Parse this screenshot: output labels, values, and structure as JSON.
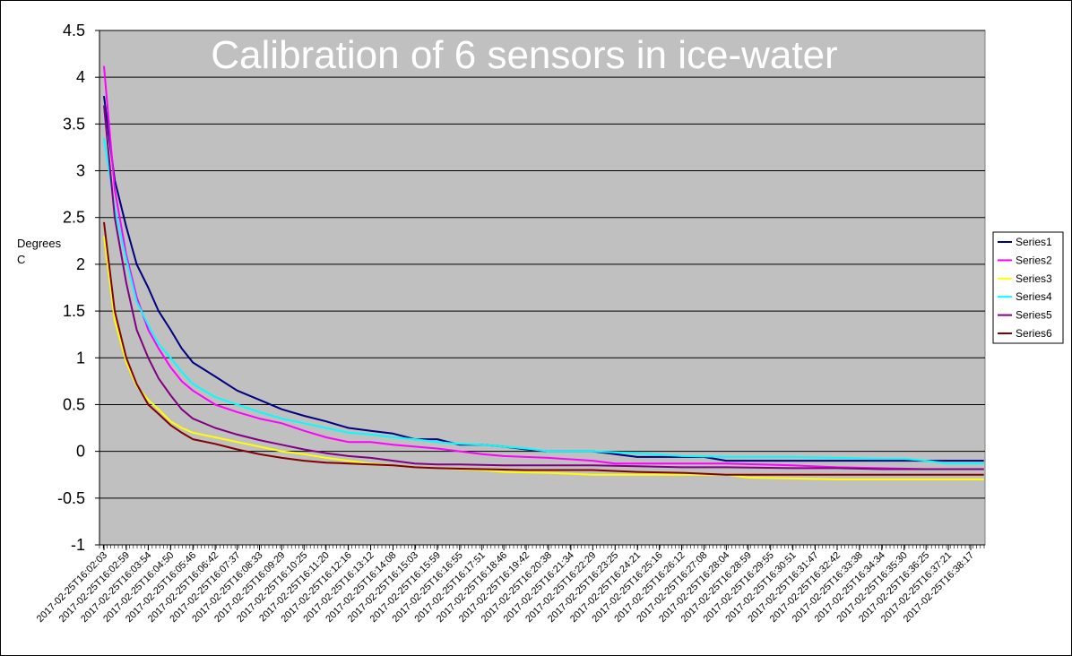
{
  "chart_data": {
    "type": "line",
    "title": "Calibration of 6 sensors in ice-water",
    "ylabel_lines": [
      "Degrees",
      "C"
    ],
    "xlabel": "",
    "ylim": [
      -1,
      4.5
    ],
    "yticks": [
      -1,
      -0.5,
      0,
      0.5,
      1,
      1.5,
      2,
      2.5,
      3,
      3.5,
      4,
      4.5
    ],
    "grid": true,
    "legend_position": "right",
    "plot_background": "#c0c0c0",
    "x_tick_labels": [
      "2017-02-25T16:02:03",
      "2017-02-25T16:02:59",
      "2017-02-25T16:03:54",
      "2017-02-25T16:04:50",
      "2017-02-25T16:05:46",
      "2017-02-25T16:06:42",
      "2017-02-25T16:07:37",
      "2017-02-25T16:08:33",
      "2017-02-25T16:09:29",
      "2017-02-25T16:10:25",
      "2017-02-25T16:11:20",
      "2017-02-25T16:12:16",
      "2017-02-25T16:13:12",
      "2017-02-25T16:14:08",
      "2017-02-25T16:15:03",
      "2017-02-25T16:15:59",
      "2017-02-25T16:16:55",
      "2017-02-25T16:17:51",
      "2017-02-25T16:18:46",
      "2017-02-25T16:19:42",
      "2017-02-25T16:20:38",
      "2017-02-25T16:21:34",
      "2017-02-25T16:22:29",
      "2017-02-25T16:23:25",
      "2017-02-25T16:24:21",
      "2017-02-25T16:25:16",
      "2017-02-25T16:26:12",
      "2017-02-25T16:27:08",
      "2017-02-25T16:28:04",
      "2017-02-25T16:28:59",
      "2017-02-25T16:29:55",
      "2017-02-25T16:30:51",
      "2017-02-25T16:31:47",
      "2017-02-25T16:32:42",
      "2017-02-25T16:33:38",
      "2017-02-25T16:34:34",
      "2017-02-25T16:35:30",
      "2017-02-25T16:36:25",
      "2017-02-25T16:37:21",
      "2017-02-25T16:38:17"
    ],
    "series": [
      {
        "name": "Series1",
        "color": "#000080",
        "points": [
          [
            "2017-02-25T16:02:03",
            3.8
          ],
          [
            "2017-02-25T16:02:30",
            2.9
          ],
          [
            "2017-02-25T16:02:59",
            2.4
          ],
          [
            "2017-02-25T16:03:25",
            2.0
          ],
          [
            "2017-02-25T16:03:54",
            1.75
          ],
          [
            "2017-02-25T16:04:20",
            1.5
          ],
          [
            "2017-02-25T16:04:50",
            1.3
          ],
          [
            "2017-02-25T16:05:18",
            1.1
          ],
          [
            "2017-02-25T16:05:46",
            0.95
          ],
          [
            "2017-02-25T16:06:42",
            0.8
          ],
          [
            "2017-02-25T16:07:37",
            0.65
          ],
          [
            "2017-02-25T16:08:33",
            0.55
          ],
          [
            "2017-02-25T16:09:29",
            0.45
          ],
          [
            "2017-02-25T16:10:25",
            0.38
          ],
          [
            "2017-02-25T16:11:20",
            0.32
          ],
          [
            "2017-02-25T16:12:16",
            0.25
          ],
          [
            "2017-02-25T16:13:12",
            0.22
          ],
          [
            "2017-02-25T16:14:08",
            0.19
          ],
          [
            "2017-02-25T16:15:03",
            0.13
          ],
          [
            "2017-02-25T16:15:59",
            0.13
          ],
          [
            "2017-02-25T16:16:55",
            0.07
          ],
          [
            "2017-02-25T16:17:51",
            0.07
          ],
          [
            "2017-02-25T16:18:46",
            0.05
          ],
          [
            "2017-02-25T16:19:42",
            0.02
          ],
          [
            "2017-02-25T16:20:38",
            0.0
          ],
          [
            "2017-02-25T16:22:29",
            0.0
          ],
          [
            "2017-02-25T16:23:25",
            -0.03
          ],
          [
            "2017-02-25T16:24:21",
            -0.06
          ],
          [
            "2017-02-25T16:25:16",
            -0.06
          ],
          [
            "2017-02-25T16:27:08",
            -0.06
          ],
          [
            "2017-02-25T16:28:04",
            -0.1
          ],
          [
            "2017-02-25T16:28:59",
            -0.1
          ],
          [
            "2017-02-25T16:30:51",
            -0.1
          ],
          [
            "2017-02-25T16:32:42",
            -0.1
          ],
          [
            "2017-02-25T16:34:34",
            -0.1
          ],
          [
            "2017-02-25T16:36:25",
            -0.1
          ],
          [
            "2017-02-25T16:37:21",
            -0.1
          ],
          [
            "2017-02-25T16:38:17",
            -0.1
          ],
          [
            "2017-02-25T16:38:50",
            -0.1
          ]
        ]
      },
      {
        "name": "Series2",
        "color": "#ff00ff",
        "points": [
          [
            "2017-02-25T16:02:03",
            4.12
          ],
          [
            "2017-02-25T16:02:30",
            2.8
          ],
          [
            "2017-02-25T16:02:59",
            2.1
          ],
          [
            "2017-02-25T16:03:25",
            1.65
          ],
          [
            "2017-02-25T16:03:54",
            1.3
          ],
          [
            "2017-02-25T16:04:20",
            1.1
          ],
          [
            "2017-02-25T16:04:50",
            0.9
          ],
          [
            "2017-02-25T16:05:18",
            0.75
          ],
          [
            "2017-02-25T16:05:46",
            0.65
          ],
          [
            "2017-02-25T16:06:42",
            0.5
          ],
          [
            "2017-02-25T16:07:37",
            0.42
          ],
          [
            "2017-02-25T16:08:33",
            0.35
          ],
          [
            "2017-02-25T16:09:29",
            0.3
          ],
          [
            "2017-02-25T16:10:25",
            0.22
          ],
          [
            "2017-02-25T16:11:20",
            0.15
          ],
          [
            "2017-02-25T16:12:16",
            0.1
          ],
          [
            "2017-02-25T16:13:12",
            0.1
          ],
          [
            "2017-02-25T16:14:08",
            0.07
          ],
          [
            "2017-02-25T16:15:03",
            0.05
          ],
          [
            "2017-02-25T16:15:59",
            0.03
          ],
          [
            "2017-02-25T16:16:55",
            0.0
          ],
          [
            "2017-02-25T16:17:51",
            -0.03
          ],
          [
            "2017-02-25T16:18:46",
            -0.05
          ],
          [
            "2017-02-25T16:20:38",
            -0.07
          ],
          [
            "2017-02-25T16:22:29",
            -0.1
          ],
          [
            "2017-02-25T16:23:25",
            -0.13
          ],
          [
            "2017-02-25T16:24:21",
            -0.13
          ],
          [
            "2017-02-25T16:26:12",
            -0.13
          ],
          [
            "2017-02-25T16:28:04",
            -0.13
          ],
          [
            "2017-02-25T16:30:51",
            -0.15
          ],
          [
            "2017-02-25T16:32:42",
            -0.17
          ],
          [
            "2017-02-25T16:34:34",
            -0.18
          ],
          [
            "2017-02-25T16:36:25",
            -0.19
          ],
          [
            "2017-02-25T16:38:17",
            -0.19
          ],
          [
            "2017-02-25T16:38:50",
            -0.19
          ]
        ]
      },
      {
        "name": "Series3",
        "color": "#ffff00",
        "points": [
          [
            "2017-02-25T16:02:03",
            2.3
          ],
          [
            "2017-02-25T16:02:30",
            1.4
          ],
          [
            "2017-02-25T16:02:59",
            0.95
          ],
          [
            "2017-02-25T16:03:25",
            0.7
          ],
          [
            "2017-02-25T16:03:54",
            0.55
          ],
          [
            "2017-02-25T16:04:20",
            0.45
          ],
          [
            "2017-02-25T16:04:50",
            0.32
          ],
          [
            "2017-02-25T16:05:18",
            0.25
          ],
          [
            "2017-02-25T16:05:46",
            0.2
          ],
          [
            "2017-02-25T16:06:42",
            0.15
          ],
          [
            "2017-02-25T16:07:37",
            0.1
          ],
          [
            "2017-02-25T16:08:33",
            0.05
          ],
          [
            "2017-02-25T16:09:29",
            0.0
          ],
          [
            "2017-02-25T16:10:25",
            -0.03
          ],
          [
            "2017-02-25T16:11:20",
            -0.07
          ],
          [
            "2017-02-25T16:12:16",
            -0.1
          ],
          [
            "2017-02-25T16:13:12",
            -0.13
          ],
          [
            "2017-02-25T16:14:08",
            -0.15
          ],
          [
            "2017-02-25T16:15:03",
            -0.17
          ],
          [
            "2017-02-25T16:15:59",
            -0.18
          ],
          [
            "2017-02-25T16:16:55",
            -0.19
          ],
          [
            "2017-02-25T16:17:51",
            -0.2
          ],
          [
            "2017-02-25T16:18:46",
            -0.22
          ],
          [
            "2017-02-25T16:20:38",
            -0.23
          ],
          [
            "2017-02-25T16:22:29",
            -0.25
          ],
          [
            "2017-02-25T16:24:21",
            -0.25
          ],
          [
            "2017-02-25T16:26:12",
            -0.25
          ],
          [
            "2017-02-25T16:28:04",
            -0.25
          ],
          [
            "2017-02-25T16:28:59",
            -0.28
          ],
          [
            "2017-02-25T16:30:51",
            -0.29
          ],
          [
            "2017-02-25T16:32:42",
            -0.3
          ],
          [
            "2017-02-25T16:34:34",
            -0.3
          ],
          [
            "2017-02-25T16:36:25",
            -0.3
          ],
          [
            "2017-02-25T16:38:17",
            -0.3
          ],
          [
            "2017-02-25T16:38:50",
            -0.3
          ]
        ]
      },
      {
        "name": "Series4",
        "color": "#00ffff",
        "points": [
          [
            "2017-02-25T16:02:03",
            3.35
          ],
          [
            "2017-02-25T16:02:30",
            2.6
          ],
          [
            "2017-02-25T16:02:59",
            2.05
          ],
          [
            "2017-02-25T16:03:25",
            1.6
          ],
          [
            "2017-02-25T16:03:54",
            1.35
          ],
          [
            "2017-02-25T16:04:20",
            1.15
          ],
          [
            "2017-02-25T16:04:50",
            1.0
          ],
          [
            "2017-02-25T16:05:18",
            0.85
          ],
          [
            "2017-02-25T16:05:46",
            0.72
          ],
          [
            "2017-02-25T16:06:42",
            0.58
          ],
          [
            "2017-02-25T16:07:37",
            0.5
          ],
          [
            "2017-02-25T16:08:33",
            0.42
          ],
          [
            "2017-02-25T16:09:29",
            0.35
          ],
          [
            "2017-02-25T16:10:25",
            0.3
          ],
          [
            "2017-02-25T16:11:20",
            0.25
          ],
          [
            "2017-02-25T16:12:16",
            0.2
          ],
          [
            "2017-02-25T16:13:12",
            0.18
          ],
          [
            "2017-02-25T16:14:08",
            0.15
          ],
          [
            "2017-02-25T16:15:03",
            0.13
          ],
          [
            "2017-02-25T16:15:59",
            0.1
          ],
          [
            "2017-02-25T16:16:55",
            0.08
          ],
          [
            "2017-02-25T16:17:51",
            0.07
          ],
          [
            "2017-02-25T16:18:46",
            0.05
          ],
          [
            "2017-02-25T16:19:42",
            0.03
          ],
          [
            "2017-02-25T16:20:38",
            0.0
          ],
          [
            "2017-02-25T16:22:29",
            0.0
          ],
          [
            "2017-02-25T16:24:21",
            -0.02
          ],
          [
            "2017-02-25T16:26:12",
            -0.05
          ],
          [
            "2017-02-25T16:28:04",
            -0.06
          ],
          [
            "2017-02-25T16:30:51",
            -0.06
          ],
          [
            "2017-02-25T16:32:42",
            -0.07
          ],
          [
            "2017-02-25T16:34:34",
            -0.08
          ],
          [
            "2017-02-25T16:35:30",
            -0.08
          ],
          [
            "2017-02-25T16:36:25",
            -0.1
          ],
          [
            "2017-02-25T16:37:21",
            -0.13
          ],
          [
            "2017-02-25T16:38:17",
            -0.13
          ],
          [
            "2017-02-25T16:38:50",
            -0.13
          ]
        ]
      },
      {
        "name": "Series5",
        "color": "#800080",
        "points": [
          [
            "2017-02-25T16:02:03",
            3.7
          ],
          [
            "2017-02-25T16:02:30",
            2.5
          ],
          [
            "2017-02-25T16:02:59",
            1.8
          ],
          [
            "2017-02-25T16:03:25",
            1.3
          ],
          [
            "2017-02-25T16:03:54",
            1.0
          ],
          [
            "2017-02-25T16:04:20",
            0.78
          ],
          [
            "2017-02-25T16:04:50",
            0.6
          ],
          [
            "2017-02-25T16:05:18",
            0.45
          ],
          [
            "2017-02-25T16:05:46",
            0.35
          ],
          [
            "2017-02-25T16:06:42",
            0.25
          ],
          [
            "2017-02-25T16:07:37",
            0.18
          ],
          [
            "2017-02-25T16:08:33",
            0.12
          ],
          [
            "2017-02-25T16:09:29",
            0.07
          ],
          [
            "2017-02-25T16:10:25",
            0.02
          ],
          [
            "2017-02-25T16:11:20",
            -0.02
          ],
          [
            "2017-02-25T16:12:16",
            -0.05
          ],
          [
            "2017-02-25T16:13:12",
            -0.07
          ],
          [
            "2017-02-25T16:14:08",
            -0.1
          ],
          [
            "2017-02-25T16:15:03",
            -0.13
          ],
          [
            "2017-02-25T16:15:59",
            -0.14
          ],
          [
            "2017-02-25T16:16:55",
            -0.14
          ],
          [
            "2017-02-25T16:18:46",
            -0.15
          ],
          [
            "2017-02-25T16:20:38",
            -0.15
          ],
          [
            "2017-02-25T16:22:29",
            -0.15
          ],
          [
            "2017-02-25T16:24:21",
            -0.16
          ],
          [
            "2017-02-25T16:26:12",
            -0.17
          ],
          [
            "2017-02-25T16:28:04",
            -0.17
          ],
          [
            "2017-02-25T16:30:51",
            -0.18
          ],
          [
            "2017-02-25T16:32:42",
            -0.18
          ],
          [
            "2017-02-25T16:34:34",
            -0.19
          ],
          [
            "2017-02-25T16:36:25",
            -0.19
          ],
          [
            "2017-02-25T16:38:17",
            -0.19
          ],
          [
            "2017-02-25T16:38:50",
            -0.19
          ]
        ]
      },
      {
        "name": "Series6",
        "color": "#800000",
        "points": [
          [
            "2017-02-25T16:02:03",
            2.45
          ],
          [
            "2017-02-25T16:02:30",
            1.5
          ],
          [
            "2017-02-25T16:02:59",
            1.0
          ],
          [
            "2017-02-25T16:03:25",
            0.72
          ],
          [
            "2017-02-25T16:03:54",
            0.5
          ],
          [
            "2017-02-25T16:04:20",
            0.4
          ],
          [
            "2017-02-25T16:04:50",
            0.28
          ],
          [
            "2017-02-25T16:05:18",
            0.2
          ],
          [
            "2017-02-25T16:05:46",
            0.13
          ],
          [
            "2017-02-25T16:06:42",
            0.08
          ],
          [
            "2017-02-25T16:07:37",
            0.02
          ],
          [
            "2017-02-25T16:08:33",
            -0.03
          ],
          [
            "2017-02-25T16:09:29",
            -0.07
          ],
          [
            "2017-02-25T16:10:25",
            -0.1
          ],
          [
            "2017-02-25T16:11:20",
            -0.12
          ],
          [
            "2017-02-25T16:12:16",
            -0.13
          ],
          [
            "2017-02-25T16:14:08",
            -0.15
          ],
          [
            "2017-02-25T16:15:03",
            -0.17
          ],
          [
            "2017-02-25T16:15:59",
            -0.18
          ],
          [
            "2017-02-25T16:17:51",
            -0.19
          ],
          [
            "2017-02-25T16:19:42",
            -0.2
          ],
          [
            "2017-02-25T16:22:29",
            -0.2
          ],
          [
            "2017-02-25T16:24:21",
            -0.22
          ],
          [
            "2017-02-25T16:26:12",
            -0.23
          ],
          [
            "2017-02-25T16:28:04",
            -0.25
          ],
          [
            "2017-02-25T16:30:51",
            -0.25
          ],
          [
            "2017-02-25T16:32:42",
            -0.25
          ],
          [
            "2017-02-25T16:34:34",
            -0.25
          ],
          [
            "2017-02-25T16:36:25",
            -0.25
          ],
          [
            "2017-02-25T16:38:17",
            -0.25
          ],
          [
            "2017-02-25T16:38:50",
            -0.25
          ]
        ]
      }
    ]
  }
}
